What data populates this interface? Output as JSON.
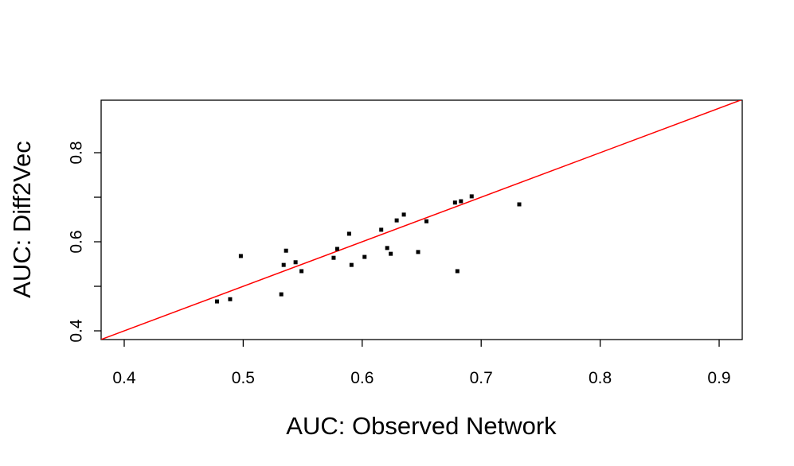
{
  "chart_data": {
    "type": "scatter",
    "xlabel": "AUC: Observed Network",
    "ylabel": "AUC: Diff2Vec",
    "xlim": [
      0.3806,
      0.9194
    ],
    "ylim": [
      0.3804,
      0.9179
    ],
    "xticks": [
      0.4,
      0.5,
      0.6,
      0.7,
      0.8,
      0.9
    ],
    "yticks": [
      0.4,
      0.6,
      0.8
    ],
    "yticks_unlabeled": [
      0.5,
      0.7
    ],
    "color": "#000000",
    "reference_line": {
      "slope": 1,
      "intercept": 0,
      "color": "#ff0000"
    },
    "series": [
      {
        "name": "AUC",
        "color": "#000000",
        "x": [
          0.478,
          0.489,
          0.498,
          0.532,
          0.534,
          0.536,
          0.544,
          0.549,
          0.576,
          0.579,
          0.589,
          0.591,
          0.602,
          0.616,
          0.621,
          0.624,
          0.629,
          0.635,
          0.647,
          0.654,
          0.678,
          0.68,
          0.683,
          0.692,
          0.732
        ],
        "values": [
          0.466,
          0.471,
          0.568,
          0.482,
          0.548,
          0.58,
          0.554,
          0.534,
          0.564,
          0.584,
          0.618,
          0.548,
          0.566,
          0.627,
          0.586,
          0.573,
          0.648,
          0.661,
          0.577,
          0.646,
          0.688,
          0.534,
          0.691,
          0.702,
          0.684
        ]
      }
    ]
  }
}
